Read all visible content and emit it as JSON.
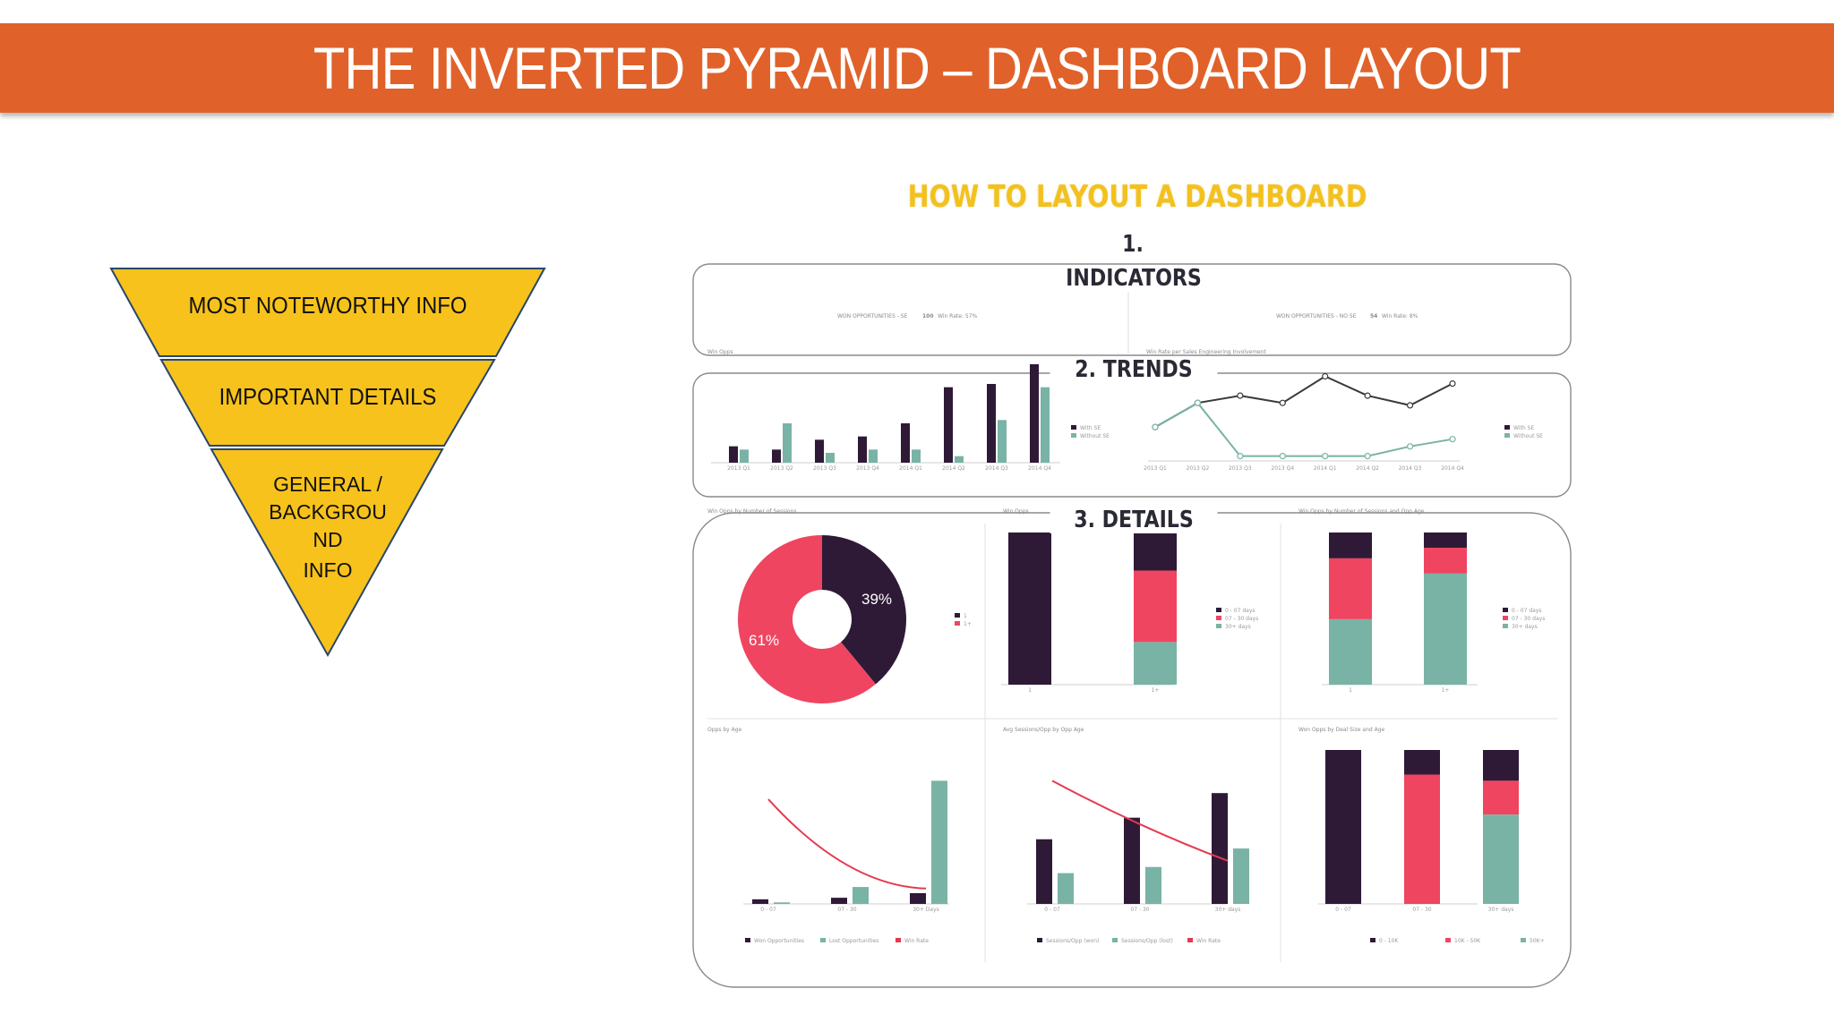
{
  "slide": {
    "title": "THE INVERTED PYRAMID – DASHBOARD LAYOUT"
  },
  "pyramid": {
    "levels": [
      {
        "label": "MOST NOTEWORTHY INFO"
      },
      {
        "label": "IMPORTANT DETAILS"
      },
      {
        "label": "GENERAL / BACKGROU ND",
        "sub": "INFO"
      }
    ],
    "fill": "#f7c21b",
    "stroke": "#27466f"
  },
  "dashboard": {
    "title": "HOW TO LAYOUT A DASHBOARD",
    "sections": {
      "indicators_number": "1.",
      "indicators": "INDICATORS",
      "trends": "2. TRENDS",
      "details": "3. DETAILS"
    },
    "kpis": [
      {
        "label": "WON OPPORTUNITIES - SE",
        "value": "100",
        "note": "Win Rate: 57%"
      },
      {
        "label": "WON OPPORTUNITIES - NO SE",
        "value": "54",
        "note": "Win Rate: 8%"
      }
    ],
    "panel_titles": {
      "win_opps": "Win Opps",
      "win_rate": "Win Rate per Sales Engineering Involvement",
      "by_sessions": "Win Opps by Number of Sessions",
      "win_opps_short": "Win Opps",
      "by_sessions_age": "Win Opps by Number of Sessions and Opp Age",
      "by_age": "Opps by Age",
      "avg_sessions": "Avg Sessions/Opp by Opp Age",
      "by_deal_size": "Won Opps by Deal Size and Age"
    },
    "donut_labels": {
      "big": "61%",
      "small": "39%"
    },
    "legends": {
      "with_without": [
        "With SE",
        "Without SE"
      ],
      "age_buckets": [
        "0 - 07 days",
        "07 - 30 days",
        "30+ days"
      ],
      "opps_by_age": [
        "Won Opportunities",
        "Lost Opportunities",
        "Win Rate"
      ],
      "avg_sessions": [
        "Sessions/Opp (won)",
        "Sessions/Opp (lost)",
        "Win Rate"
      ],
      "deal_size": [
        "0 - 10K",
        "10K - 50K",
        "50K+"
      ]
    },
    "colors": {
      "dark": "#2e1a37",
      "teal": "#79b3a6",
      "pink": "#ef4561",
      "red_line": "#e53950",
      "grey_line": "#3a3a3a"
    }
  },
  "chart_data": [
    {
      "type": "bar",
      "title": "Win Opps",
      "categories": [
        "2013 Q1",
        "2013 Q2",
        "2013 Q3",
        "2013 Q4",
        "2014 Q1",
        "2014 Q2",
        "2014 Q3",
        "2014 Q4"
      ],
      "series": [
        {
          "name": "With SE",
          "values": [
            5,
            4,
            7,
            8,
            12,
            23,
            24,
            30
          ]
        },
        {
          "name": "Without SE",
          "values": [
            4,
            12,
            3,
            4,
            4,
            2,
            13,
            23
          ]
        }
      ],
      "ylim": [
        0,
        30
      ]
    },
    {
      "type": "line",
      "title": "Win Rate per Sales Engineering Involvement",
      "categories": [
        "2013 Q1",
        "2013 Q2",
        "2013 Q3",
        "2013 Q4",
        "2014 Q1",
        "2014 Q2",
        "2014 Q3",
        "2014 Q4"
      ],
      "series": [
        {
          "name": "With SE",
          "values": [
            0.14,
            0.24,
            0.27,
            0.24,
            0.35,
            0.27,
            0.23,
            0.32
          ]
        },
        {
          "name": "Without SE",
          "values": [
            0.14,
            0.24,
            0.02,
            0.02,
            0.02,
            0.02,
            0.06,
            0.09
          ]
        }
      ],
      "ylim": [
        0,
        0.4
      ]
    },
    {
      "type": "pie",
      "title": "Win Opps by Number of Sessions",
      "labels": [
        "1",
        "1+"
      ],
      "values": [
        39,
        61
      ]
    },
    {
      "type": "bar",
      "title": "Win Opps",
      "categories": [
        "1",
        "1+"
      ],
      "series": [
        {
          "name": "0 - 07 days",
          "values": [
            100,
            25
          ]
        },
        {
          "name": "07 - 30 days",
          "values": [
            0,
            47
          ]
        },
        {
          "name": "30+ days",
          "values": [
            0,
            28
          ]
        }
      ],
      "ylim": [
        0,
        100
      ]
    },
    {
      "type": "bar",
      "title": "Win Opps by Number of Sessions and Opp Age",
      "categories": [
        "1",
        "1+"
      ],
      "series": [
        {
          "name": "0 - 07 days",
          "values": [
            17,
            10
          ]
        },
        {
          "name": "07 - 30 days",
          "values": [
            40,
            17
          ]
        },
        {
          "name": "30+ days",
          "values": [
            43,
            73
          ]
        }
      ],
      "ylim": [
        0,
        100
      ]
    },
    {
      "type": "bar",
      "title": "Opps by Age",
      "categories": [
        "0 - 07",
        "07 - 30",
        "30+ Days"
      ],
      "series": [
        {
          "name": "Won Opportunities",
          "values": [
            30,
            40,
            70
          ]
        },
        {
          "name": "Lost Opportunities",
          "values": [
            10,
            110,
            800
          ]
        },
        {
          "name": "Win Rate",
          "values": [
            0.68,
            0.22,
            0.1
          ]
        }
      ],
      "ylim": [
        0,
        1000
      ]
    },
    {
      "type": "bar",
      "title": "Avg Sessions/Opp by Opp Age",
      "categories": [
        "0 - 07",
        "07 - 30",
        "30+ days"
      ],
      "series": [
        {
          "name": "Sessions/Opp (won)",
          "values": [
            2.1,
            2.8,
            3.6
          ]
        },
        {
          "name": "Sessions/Opp (lost)",
          "values": [
            1.0,
            1.2,
            1.8
          ]
        },
        {
          "name": "Win Rate",
          "values": [
            0.8,
            0.6,
            0.28
          ]
        }
      ],
      "ylim": [
        0,
        5
      ]
    },
    {
      "type": "bar",
      "title": "Won Opps by Deal Size and Age",
      "categories": [
        "0 - 07",
        "07 - 30",
        "30+ days"
      ],
      "series": [
        {
          "name": "0 - 10K",
          "values": [
            100,
            16,
            20
          ]
        },
        {
          "name": "10K - 50K",
          "values": [
            0,
            84,
            22
          ]
        },
        {
          "name": "50K+",
          "values": [
            0,
            0,
            58
          ]
        }
      ],
      "ylim": [
        0,
        100
      ]
    }
  ]
}
